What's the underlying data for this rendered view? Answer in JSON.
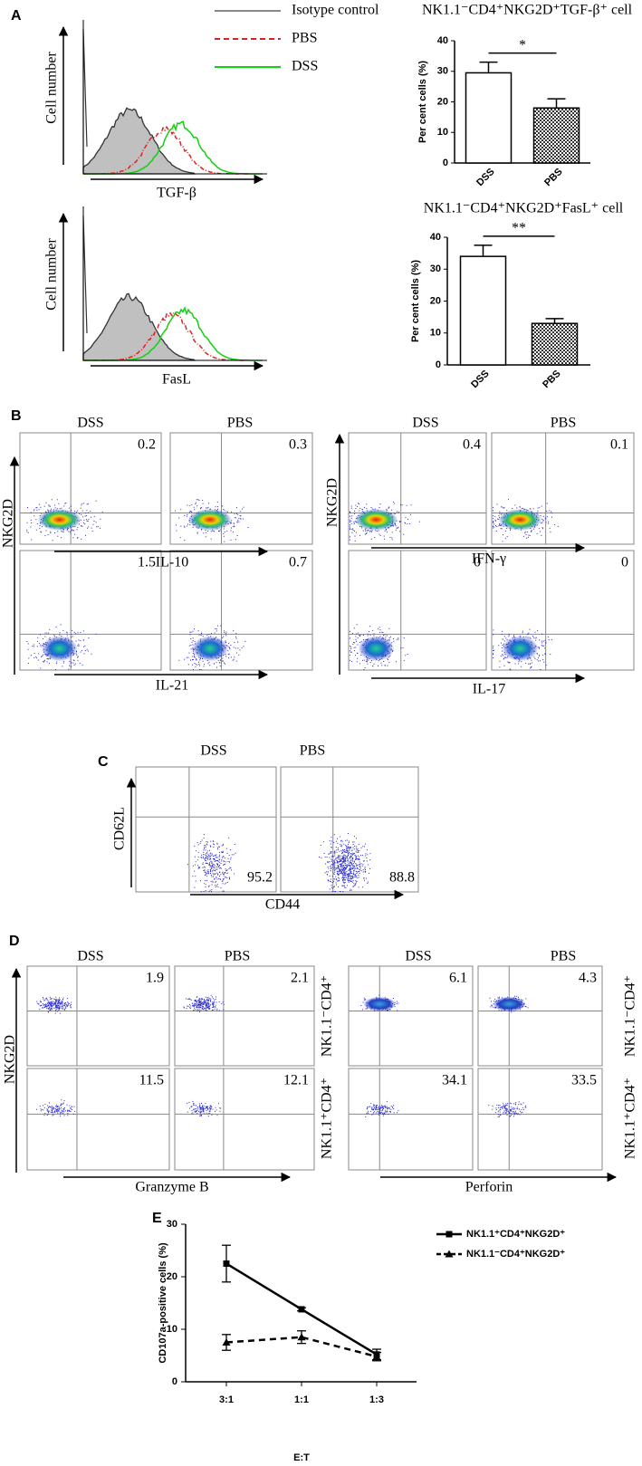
{
  "chart_data": [
    {
      "type": "bar",
      "title": "NK1.1⁻CD4⁺NKG2D⁺TGF-β⁺ cell",
      "ylabel": "Per cent cells (%)",
      "categories": [
        "DSS",
        "PBS"
      ],
      "values": [
        29.5,
        18
      ],
      "errors": [
        3.5,
        3
      ],
      "hatched": [
        false,
        true
      ],
      "ylim": [
        0,
        40
      ],
      "yticks": [
        0,
        10,
        20,
        30,
        40
      ],
      "significance": "*"
    },
    {
      "type": "bar",
      "title": "NK1.1⁻CD4⁺NKG2D⁺FasL⁺ cell",
      "ylabel": "Per cent cells (%)",
      "categories": [
        "DSS",
        "PBS"
      ],
      "values": [
        34,
        13
      ],
      "errors": [
        3.5,
        1.5
      ],
      "hatched": [
        false,
        true
      ],
      "ylim": [
        0,
        40
      ],
      "yticks": [
        0,
        10,
        20,
        30,
        40
      ],
      "significance": "**"
    },
    {
      "type": "line",
      "xlabel": "E:T",
      "ylabel": "CD107a-positive cells (%)",
      "categories": [
        "3:1",
        "1:1",
        "1:3"
      ],
      "series": [
        {
          "name": "NK1.1⁺CD4⁺NKG2D⁺",
          "color": "#000000",
          "dashed": false,
          "marker": "square",
          "values": [
            22.5,
            13.8,
            5.2
          ],
          "errors": [
            3.5,
            0.3,
            1
          ]
        },
        {
          "name": "NK1.1⁻CD4⁺NKG2D⁺",
          "color": "#000000",
          "dashed": true,
          "marker": "triangle",
          "values": [
            7.5,
            8.5,
            4.8
          ],
          "errors": [
            1.5,
            1.2,
            0.8
          ]
        }
      ],
      "ylim": [
        0,
        30
      ],
      "yticks": [
        0,
        10,
        20,
        30
      ],
      "legend": "upper right"
    }
  ],
  "panels": {
    "A": {
      "label": "A",
      "legend": [
        "Isotype control",
        "PBS",
        "DSS"
      ],
      "ylabels": [
        "Cell number",
        "Cell number"
      ],
      "xlabels": [
        "TGF-β",
        "FasL"
      ]
    },
    "B": {
      "label": "B",
      "headers": [
        "DSS",
        "PBS",
        "DSS",
        "PBS"
      ],
      "ylabels": [
        "NKG2D",
        "NKG2D"
      ],
      "xlabels": [
        "IL-10",
        "IFN-γ",
        "IL-21",
        "IL-17"
      ],
      "quadrant_values": [
        0.2,
        0.3,
        0.4,
        0.1,
        1.5,
        0.7,
        0,
        0
      ]
    },
    "C": {
      "label": "C",
      "headers": [
        "DSS",
        "PBS"
      ],
      "ylabel": "CD62L",
      "xlabel": "CD44",
      "quadrant_values": [
        95.2,
        88.8
      ]
    },
    "D": {
      "label": "D",
      "headers": [
        "DSS",
        "PBS",
        "DSS",
        "PBS"
      ],
      "ylabel": "NKG2D",
      "xlabels": [
        "Granzyme B",
        "Perforin"
      ],
      "row_labels": [
        "NK1.1⁻CD4⁺",
        "NK1.1⁺CD4⁺"
      ],
      "quadrant_values": [
        1.9,
        2.1,
        6.1,
        4.3,
        11.5,
        12.1,
        34.1,
        33.5
      ]
    },
    "E": {
      "label": "E"
    }
  }
}
